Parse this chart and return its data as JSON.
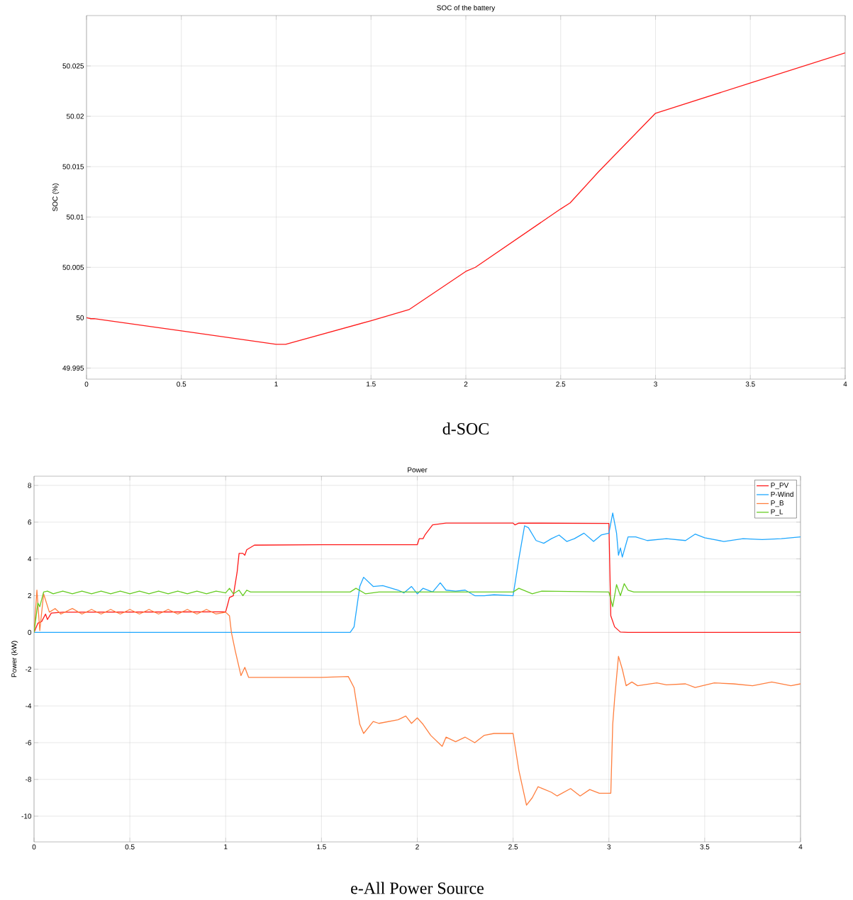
{
  "chart_data": [
    {
      "type": "line",
      "title": "SOC of the battery",
      "ylabel": "SOC (%)",
      "xlim": [
        0,
        4
      ],
      "ylim": [
        49.9939,
        50.03
      ],
      "xticks": [
        0,
        0.5,
        1,
        1.5,
        2,
        2.5,
        3,
        3.5,
        4
      ],
      "yticks": [
        49.995,
        50,
        50.005,
        50.01,
        50.015,
        50.02,
        50.025
      ],
      "grid": true,
      "legend": false,
      "annotations": [
        "d-SOC"
      ],
      "series": [
        {
          "color": "#ff1a1a",
          "x": [
            0,
            0.02,
            0.04,
            0.5,
            1.0,
            1.05,
            1.5,
            1.7,
            2.0,
            2.05,
            2.5,
            2.55,
            2.7,
            3.0,
            3.05,
            3.5,
            4.0
          ],
          "values": [
            50.0,
            49.9999,
            49.9999,
            49.9987,
            49.99735,
            49.99735,
            49.9997,
            50.0008,
            50.0046,
            50.005,
            50.0108,
            50.0114,
            50.0145,
            50.0203,
            50.0206,
            50.0233,
            50.0263
          ]
        }
      ]
    },
    {
      "type": "line",
      "title": "Power",
      "ylabel": "Power (kW)",
      "xlim": [
        0,
        4
      ],
      "ylim": [
        -11.4,
        8.5
      ],
      "xticks": [
        0,
        0.5,
        1,
        1.5,
        2,
        2.5,
        3,
        3.5,
        4
      ],
      "yticks": [
        -10,
        -8,
        -6,
        -4,
        -2,
        0,
        2,
        4,
        6,
        8
      ],
      "grid": true,
      "legend": "top right",
      "annotations": [
        "e-All Power Source"
      ],
      "series": [
        {
          "name": "P_PV",
          "color": "#ff1a1a",
          "x": [
            0,
            0.02,
            0.04,
            0.06,
            0.07,
            0.09,
            0.15,
            1.0,
            1.01,
            1.02,
            1.04,
            1.06,
            1.07,
            1.09,
            1.1,
            1.11,
            1.15,
            1.5,
            2.0,
            2.01,
            2.03,
            2.04,
            2.08,
            2.15,
            2.5,
            2.51,
            2.53,
            3.0,
            3.01,
            3.03,
            3.06,
            3.1,
            4.0
          ],
          "values": [
            0,
            0.5,
            0.6,
            1.0,
            0.7,
            1.05,
            1.1,
            1.12,
            1.5,
            1.9,
            2.0,
            3.3,
            4.3,
            4.3,
            4.2,
            4.5,
            4.75,
            4.77,
            4.77,
            5.1,
            5.1,
            5.3,
            5.85,
            5.95,
            5.95,
            5.85,
            5.95,
            5.93,
            0.9,
            0.3,
            0.02,
            0,
            0
          ]
        },
        {
          "name": "P-Wind",
          "color": "#1ea7ff",
          "x": [
            0,
            1.65,
            1.67,
            1.7,
            1.72,
            1.77,
            1.82,
            1.9,
            1.93,
            1.97,
            2.0,
            2.03,
            2.08,
            2.12,
            2.15,
            2.2,
            2.25,
            2.3,
            2.35,
            2.4,
            2.5,
            2.53,
            2.56,
            2.58,
            2.62,
            2.66,
            2.7,
            2.74,
            2.78,
            2.82,
            2.87,
            2.92,
            2.96,
            3.0,
            3.02,
            3.04,
            3.05,
            3.06,
            3.07,
            3.1,
            3.14,
            3.2,
            3.3,
            3.4,
            3.45,
            3.5,
            3.6,
            3.7,
            3.8,
            3.9,
            4.0
          ],
          "values": [
            0,
            0,
            0.3,
            2.5,
            3.0,
            2.5,
            2.55,
            2.3,
            2.15,
            2.5,
            2.1,
            2.4,
            2.2,
            2.7,
            2.3,
            2.25,
            2.3,
            2.0,
            2.0,
            2.05,
            2.0,
            4.0,
            5.8,
            5.7,
            5.0,
            4.85,
            5.1,
            5.3,
            4.95,
            5.1,
            5.4,
            4.95,
            5.3,
            5.4,
            6.5,
            5.4,
            4.2,
            4.6,
            4.1,
            5.2,
            5.2,
            5.0,
            5.1,
            5.0,
            5.35,
            5.15,
            4.95,
            5.1,
            5.05,
            5.1,
            5.2
          ]
        },
        {
          "name": "P_B",
          "color": "#ff7f3f",
          "x": [
            0,
            0.015,
            0.03,
            0.05,
            0.08,
            0.11,
            0.14,
            0.2,
            0.25,
            0.3,
            0.35,
            0.4,
            0.45,
            0.5,
            0.55,
            0.6,
            0.65,
            0.7,
            0.75,
            0.8,
            0.85,
            0.9,
            0.95,
            1.0,
            1.02,
            1.03,
            1.05,
            1.08,
            1.1,
            1.12,
            1.5,
            1.64,
            1.67,
            1.7,
            1.72,
            1.77,
            1.8,
            1.9,
            1.94,
            1.97,
            2.0,
            2.03,
            2.07,
            2.13,
            2.15,
            2.2,
            2.25,
            2.3,
            2.35,
            2.4,
            2.5,
            2.53,
            2.57,
            2.6,
            2.63,
            2.7,
            2.73,
            2.8,
            2.85,
            2.9,
            2.95,
            3.01,
            3.02,
            3.03,
            3.05,
            3.07,
            3.09,
            3.12,
            3.15,
            3.25,
            3.3,
            3.4,
            3.45,
            3.55,
            3.65,
            3.75,
            3.85,
            3.95,
            4.0
          ],
          "values": [
            0,
            2.3,
            0.1,
            2.1,
            1.1,
            1.3,
            1.0,
            1.3,
            1.0,
            1.25,
            1.0,
            1.25,
            1.0,
            1.25,
            1.0,
            1.25,
            1.0,
            1.25,
            1.0,
            1.25,
            1.0,
            1.25,
            1.0,
            1.1,
            0.9,
            0,
            -1.0,
            -2.35,
            -1.9,
            -2.45,
            -2.45,
            -2.4,
            -3.0,
            -5.0,
            -5.5,
            -4.85,
            -4.95,
            -4.75,
            -4.55,
            -4.95,
            -4.65,
            -5.0,
            -5.6,
            -6.2,
            -5.7,
            -5.95,
            -5.7,
            -6.0,
            -5.6,
            -5.5,
            -5.5,
            -7.5,
            -9.4,
            -9.0,
            -8.4,
            -8.7,
            -8.9,
            -8.5,
            -8.9,
            -8.55,
            -8.75,
            -8.75,
            -5.0,
            -3.6,
            -1.3,
            -2.0,
            -2.9,
            -2.7,
            -2.9,
            -2.75,
            -2.85,
            -2.8,
            -3.0,
            -2.75,
            -2.8,
            -2.9,
            -2.7,
            -2.9,
            -2.8
          ]
        },
        {
          "name": "P_L",
          "color": "#66cc22",
          "x": [
            0,
            0.02,
            0.03,
            0.05,
            0.07,
            0.1,
            0.15,
            0.2,
            0.25,
            0.3,
            0.35,
            0.4,
            0.45,
            0.5,
            0.55,
            0.6,
            0.65,
            0.7,
            0.75,
            0.8,
            0.85,
            0.9,
            0.95,
            1.0,
            1.02,
            1.04,
            1.07,
            1.09,
            1.11,
            1.13,
            1.65,
            1.68,
            1.73,
            1.8,
            2.5,
            2.53,
            2.6,
            2.65,
            3.0,
            3.02,
            3.04,
            3.06,
            3.08,
            3.1,
            3.13,
            4.0
          ],
          "values": [
            0,
            1.6,
            1.4,
            2.2,
            2.25,
            2.1,
            2.25,
            2.1,
            2.25,
            2.1,
            2.25,
            2.1,
            2.25,
            2.1,
            2.25,
            2.1,
            2.25,
            2.1,
            2.25,
            2.1,
            2.25,
            2.1,
            2.25,
            2.15,
            2.4,
            2.1,
            2.3,
            2.0,
            2.3,
            2.2,
            2.2,
            2.4,
            2.1,
            2.2,
            2.2,
            2.4,
            2.1,
            2.25,
            2.2,
            1.4,
            2.6,
            2.0,
            2.65,
            2.3,
            2.2,
            2.2
          ]
        }
      ]
    }
  ]
}
